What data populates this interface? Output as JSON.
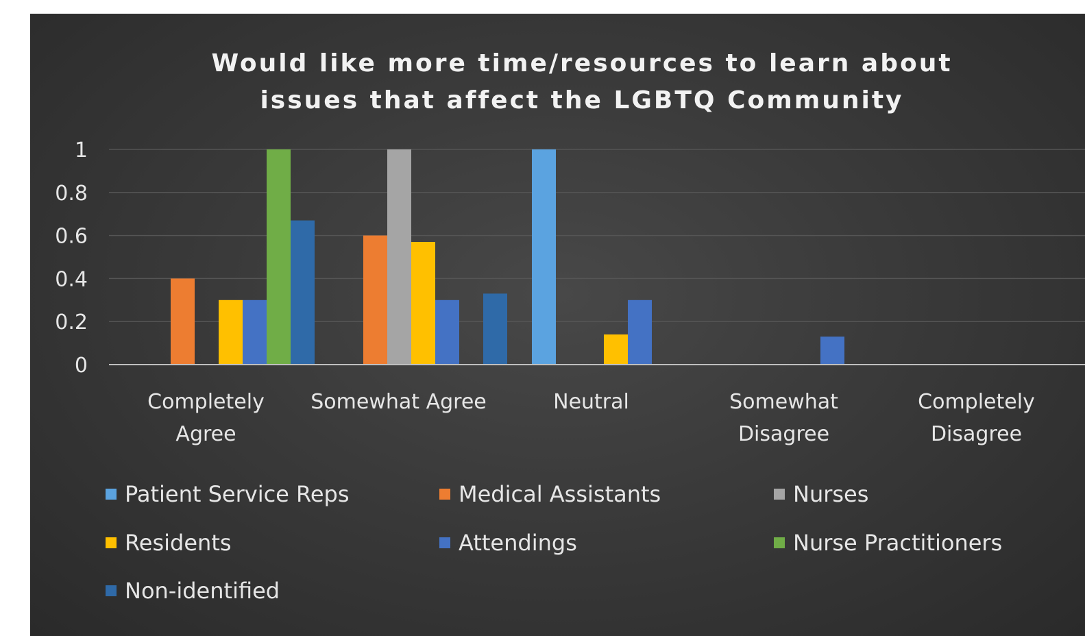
{
  "chart_data": {
    "type": "bar",
    "title_lines": [
      "Would like more time/resources to learn about",
      "issues that affect the LGBTQ Community"
    ],
    "categories": [
      [
        "Completely",
        "Agree"
      ],
      [
        "Somewhat Agree"
      ],
      [
        "Neutral"
      ],
      [
        "Somewhat",
        "Disagree"
      ],
      [
        "Completely",
        "Disagree"
      ]
    ],
    "ylim": [
      0,
      1
    ],
    "yticks": [
      "0",
      "0.2",
      "0.4",
      "0.6",
      "0.8",
      "1"
    ],
    "grid": true,
    "legend_position": "bottom",
    "series": [
      {
        "name": "Patient Service Reps",
        "color": "#5ba3e0",
        "values": [
          0,
          0,
          1,
          0,
          0
        ]
      },
      {
        "name": "Medical Assistants",
        "color": "#ed7d31",
        "values": [
          0.4,
          0.6,
          0,
          0,
          0
        ]
      },
      {
        "name": "Nurses",
        "color": "#a5a5a5",
        "values": [
          0,
          1,
          0,
          0,
          0
        ]
      },
      {
        "name": "Residents",
        "color": "#ffc000",
        "values": [
          0.3,
          0.57,
          0.14,
          0,
          0
        ]
      },
      {
        "name": "Attendings",
        "color": "#4472c4",
        "values": [
          0.3,
          0.3,
          0.3,
          0.13,
          0
        ]
      },
      {
        "name": "Nurse Practitioners",
        "color": "#70ad47",
        "values": [
          1,
          0,
          0,
          0,
          0
        ]
      },
      {
        "name": "Non-identified",
        "color": "#2f6aa8",
        "values": [
          0.67,
          0.33,
          0,
          0,
          0
        ]
      }
    ]
  }
}
